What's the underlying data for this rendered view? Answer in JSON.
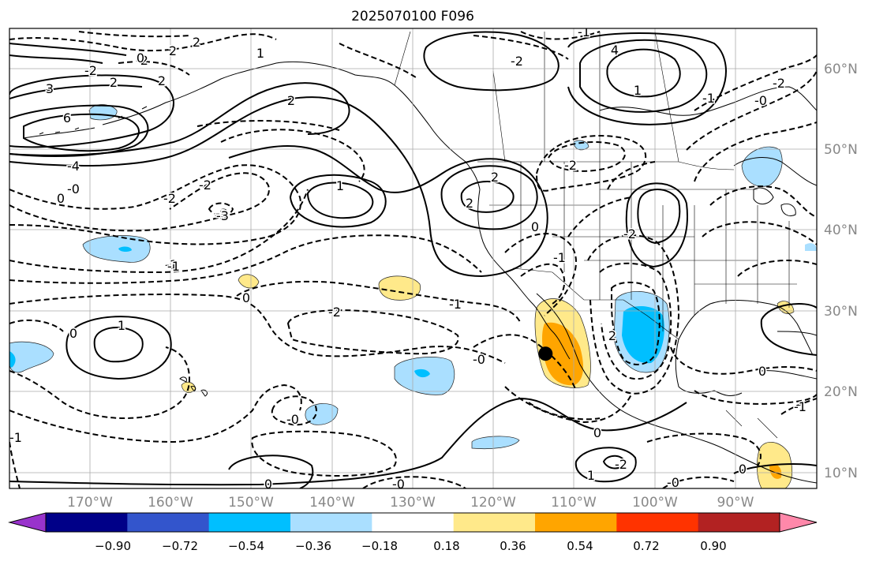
{
  "title": "2025070100 F096",
  "lat_labels": [
    "60°N",
    "50°N",
    "40°N",
    "30°N",
    "20°N",
    "10°N"
  ],
  "lon_labels": [
    "170°W",
    "160°W",
    "150°W",
    "140°W",
    "130°W",
    "120°W",
    "110°W",
    "100°W",
    "90°W"
  ],
  "colorbar": {
    "colors": [
      "#9933cc",
      "#000088",
      "#3355cc",
      "#00bfff",
      "#aadfff",
      "#ffffff",
      "#ffe98a",
      "#ffa500",
      "#ff3300",
      "#b22222",
      "#ff88aa"
    ],
    "tick_labels": [
      "−0.90",
      "−0.72",
      "−0.54",
      "−0.36",
      "−0.18",
      "0.18",
      "0.36",
      "0.54",
      "0.72",
      "0.90"
    ]
  },
  "contour_labels": [
    "2",
    "2",
    "-2",
    "-2",
    "0",
    "1",
    "2",
    "2",
    "3",
    "2",
    "-3",
    "6",
    "-4",
    "-0",
    "-3",
    "-2",
    "-1",
    "1",
    "-2",
    "-3",
    "0",
    "-1",
    "-2",
    "1",
    "0",
    "2",
    "2",
    "4",
    "-2",
    "1",
    "-1",
    "-2",
    "-0",
    "-1",
    "0",
    "-2",
    "-2",
    "0",
    "-0",
    "-1",
    "-0",
    "0",
    "0",
    "-0",
    "1",
    "-2",
    "-1",
    "-1",
    "0",
    "0",
    "-1",
    "2",
    "-0"
  ],
  "marker": {
    "label": "point marker",
    "lon": -113.6,
    "lat": 24.7
  }
}
